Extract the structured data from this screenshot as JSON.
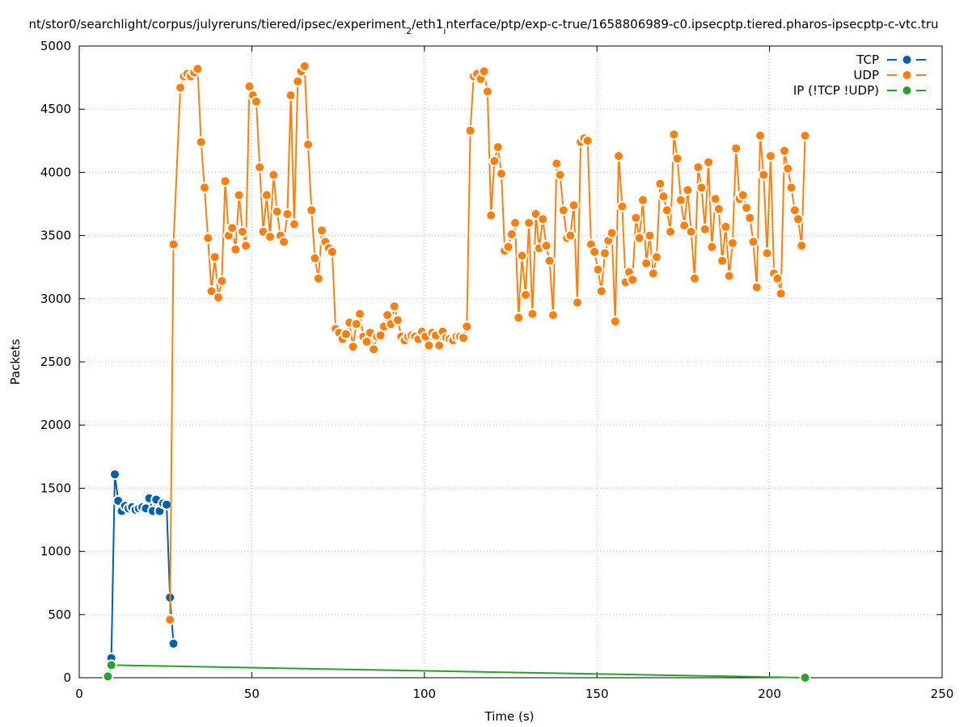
{
  "chart_data": {
    "type": "line",
    "title": "nt/stor0/searchlight/corpus/julyreruns/tiered/ipsec/experiment_2/eth1_interface/ptp/exp-c-true/1658806989-c0.ipsecptp.tiered.pharos-ipsecptp-c-vtc.tru",
    "title_parts": [
      {
        "text": "nt/stor0/searchlight/corpus/julyreruns/tiered/ipsec/experiment",
        "style": "normal"
      },
      {
        "text": "2",
        "style": "sub"
      },
      {
        "text": "/eth1",
        "style": "normal"
      },
      {
        "text": "i",
        "style": "sub"
      },
      {
        "text": "nterface/ptp/exp-c-true/1658806989-c0.ipsecptp.tiered.pharos-ipsecptp-c-vtc.tru",
        "style": "normal"
      }
    ],
    "xlabel": "Time (s)",
    "ylabel": "Packets",
    "xlim": [
      0,
      250
    ],
    "ylim": [
      0,
      5000
    ],
    "xticks": [
      0,
      50,
      100,
      150,
      200,
      250
    ],
    "yticks": [
      0,
      500,
      1000,
      1500,
      2000,
      2500,
      3000,
      3500,
      4000,
      4500,
      5000
    ],
    "grid": true,
    "legend_position": "top-right",
    "series": [
      {
        "name": "TCP",
        "color": "#0060ad",
        "x": [
          9.3,
          10.3,
          11.3,
          12.3,
          13.3,
          14.3,
          15.3,
          16.3,
          17.3,
          18.3,
          19.3,
          20.3,
          21.3,
          22.3,
          23.3,
          24.3,
          25.3,
          26.3,
          27.3
        ],
        "values": [
          155,
          1610,
          1400,
          1320,
          1360,
          1340,
          1350,
          1330,
          1340,
          1350,
          1340,
          1420,
          1320,
          1410,
          1320,
          1380,
          1370,
          635,
          270
        ]
      },
      {
        "name": "UDP",
        "color": "#ff7f0e",
        "x": [
          26.3,
          27.3,
          29.3,
          30.3,
          31.3,
          32.3,
          33.3,
          34.3,
          35.3,
          36.3,
          37.3,
          38.3,
          39.3,
          40.3,
          41.3,
          42.3,
          43.3,
          44.3,
          45.3,
          46.3,
          47.3,
          48.3,
          49.3,
          50.3,
          51.3,
          52.3,
          53.3,
          54.3,
          55.3,
          56.3,
          57.3,
          58.3,
          59.3,
          60.3,
          61.3,
          62.3,
          63.3,
          64.3,
          65.3,
          66.3,
          67.3,
          68.3,
          69.3,
          70.3,
          71.3,
          72.3,
          73.3,
          74.3,
          75.3,
          76.3,
          77.3,
          78.3,
          79.3,
          80.3,
          81.3,
          82.3,
          83.3,
          84.3,
          85.3,
          86.3,
          87.3,
          88.3,
          89.3,
          90.3,
          91.3,
          92.3,
          93.3,
          94.3,
          95.3,
          96.3,
          97.3,
          98.3,
          99.3,
          100.3,
          101.3,
          102.3,
          103.3,
          104.3,
          105.3,
          106.3,
          107.3,
          108.3,
          109.3,
          110.3,
          111.3,
          112.3,
          113.3,
          114.3,
          115.3,
          116.3,
          117.3,
          118.3,
          119.3,
          120.3,
          121.3,
          122.3,
          123.3,
          124.3,
          125.3,
          126.3,
          127.3,
          128.3,
          129.3,
          130.3,
          131.3,
          132.3,
          133.3,
          134.3,
          135.3,
          136.3,
          137.3,
          138.3,
          139.3,
          140.3,
          141.3,
          142.3,
          143.3,
          144.3,
          145.3,
          146.3,
          147.3,
          148.3,
          149.3,
          150.3,
          151.3,
          152.3,
          153.3,
          154.3,
          155.3,
          156.3,
          157.3,
          158.3,
          159.3,
          160.3,
          161.3,
          162.3,
          163.3,
          164.3,
          165.3,
          166.3,
          167.3,
          168.3,
          169.3,
          170.3,
          171.3,
          172.3,
          173.3,
          174.3,
          175.3,
          176.3,
          177.3,
          178.3,
          179.3,
          180.3,
          181.3,
          182.3,
          183.3,
          184.3,
          185.3,
          186.3,
          187.3,
          188.3,
          189.3,
          190.3,
          191.3,
          192.3,
          193.3,
          194.3,
          195.3,
          196.3,
          197.3,
          198.3,
          199.3,
          200.3,
          201.3,
          202.3,
          203.3,
          204.3,
          205.3,
          206.3,
          207.3,
          208.3,
          209.3,
          210.3
        ],
        "values": [
          460,
          3430,
          4670,
          4760,
          4780,
          4760,
          4790,
          4820,
          4240,
          3880,
          3480,
          3060,
          3330,
          3010,
          3140,
          3930,
          3500,
          3560,
          3390,
          3820,
          3530,
          3420,
          4680,
          4610,
          4560,
          4040,
          3530,
          3820,
          3490,
          3980,
          3690,
          3500,
          3450,
          3670,
          4610,
          3590,
          4720,
          4800,
          4840,
          4220,
          3700,
          3320,
          3160,
          3540,
          3450,
          3400,
          3370,
          2760,
          2730,
          2680,
          2720,
          2810,
          2620,
          2800,
          2880,
          2700,
          2660,
          2730,
          2600,
          2700,
          2710,
          2780,
          2870,
          2800,
          2940,
          2830,
          2700,
          2670,
          2700,
          2710,
          2700,
          2680,
          2740,
          2700,
          2630,
          2730,
          2710,
          2630,
          2740,
          2690,
          2680,
          2670,
          2700,
          2700,
          2690,
          2780,
          4330,
          4760,
          4780,
          4740,
          4800,
          4640,
          3660,
          4090,
          4200,
          3990,
          3380,
          3410,
          3510,
          3600,
          2850,
          3340,
          3030,
          3600,
          2880,
          3670,
          3400,
          3630,
          3420,
          3300,
          2870,
          4070,
          3980,
          3700,
          3480,
          3500,
          3740,
          2970,
          4240,
          4270,
          4250,
          3430,
          3370,
          3230,
          3060,
          3360,
          3460,
          3520,
          2820,
          4130,
          3730,
          3130,
          3210,
          3150,
          3640,
          3480,
          3780,
          3280,
          3500,
          3200,
          3330,
          3910,
          3810,
          3700,
          3530,
          4300,
          4110,
          3780,
          3580,
          3860,
          3530,
          3160,
          4040,
          3880,
          3550,
          4080,
          3410,
          3790,
          3710,
          3300,
          3570,
          3180,
          3440,
          4190,
          3790,
          3820,
          3720,
          3640,
          3450,
          3090,
          4290,
          3980,
          3360,
          4130,
          3200,
          3160,
          3040,
          4170,
          4030,
          3880,
          3700,
          3630,
          3420,
          4290
        ]
      },
      {
        "name": "IP (!TCP  !UDP)",
        "color": "#2ca02c",
        "x": [
          8.3,
          9.3,
          210.3
        ],
        "values": [
          10,
          100,
          0
        ]
      }
    ]
  }
}
